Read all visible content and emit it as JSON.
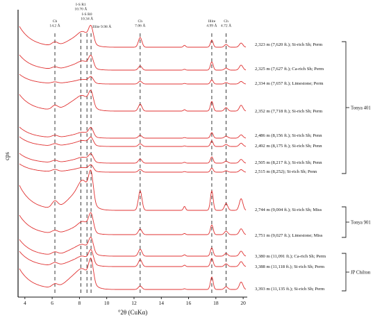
{
  "chart_data": {
    "type": "line",
    "xlabel": "°2θ (CuKα)",
    "ylabel": "cps",
    "xlim": [
      3.5,
      20.3
    ],
    "xticks": [
      4,
      6,
      8,
      10,
      12,
      14,
      16,
      18,
      20
    ],
    "line_color": "#e03030",
    "peak_markers": [
      {
        "lines": [
          "Ch",
          "14.2 Å"
        ],
        "x": 6.2
      },
      {
        "lines": [
          "I-S R1",
          "10.70 Å"
        ],
        "x": 8.1
      },
      {
        "lines": [
          "I-S R0",
          "10.34 Å"
        ],
        "x": 8.55
      },
      {
        "lines": [
          "Illite 9.98 Å"
        ],
        "x": 8.85
      },
      {
        "lines": [
          "Ch",
          "7.06 Å"
        ],
        "x": 12.45
      },
      {
        "lines": [
          "Illite",
          "4.99 Å"
        ],
        "x": 17.7
      },
      {
        "lines": [
          "Ch",
          "4.72 Å"
        ],
        "x": 18.75
      }
    ],
    "series": [
      {
        "label": "2,323 m (7,620 ft.); Si-rich Sh; Perm"
      },
      {
        "label": "2,325 m (7,627 ft.); Ca-rich Sh; Perm"
      },
      {
        "label": "2,334 m (7,657 ft.); Limestone; Perm"
      },
      {
        "label": "2,352 m (7,718 ft.); Si-rich Sh; Perm"
      },
      {
        "label": "2,486 m (8,156 ft.); Si-rich Sh; Penn"
      },
      {
        "label": "2,492 m (8,175 ft.); Si-rich Sh; Penn"
      },
      {
        "label": "2,505 m (8,217 ft.); Si-rich Sh; Penn"
      },
      {
        "label": "2,515 m (8,252); Si-rich Sh; Penn"
      },
      {
        "label": "2,744 m (9,004 ft.); Si-rich Sh; Miss"
      },
      {
        "label": "2,751 m (9,027 ft.); Limestone; Miss"
      },
      {
        "label": "3,380 m (11,091 ft.); Ca-rich Sh; Perm"
      },
      {
        "label": "3,388 m (11,118 ft.); Si-rich Sh; Perm"
      },
      {
        "label": "3,393 m (11,135 ft.); Si-rich Sh; Perm"
      }
    ],
    "groups": [
      {
        "label": "Tonya 401",
        "from": 0,
        "to": 7
      },
      {
        "label": "Tonya 901",
        "from": 8,
        "to": 9
      },
      {
        "label": "JP Chilton",
        "from": 10,
        "to": 12
      }
    ]
  }
}
